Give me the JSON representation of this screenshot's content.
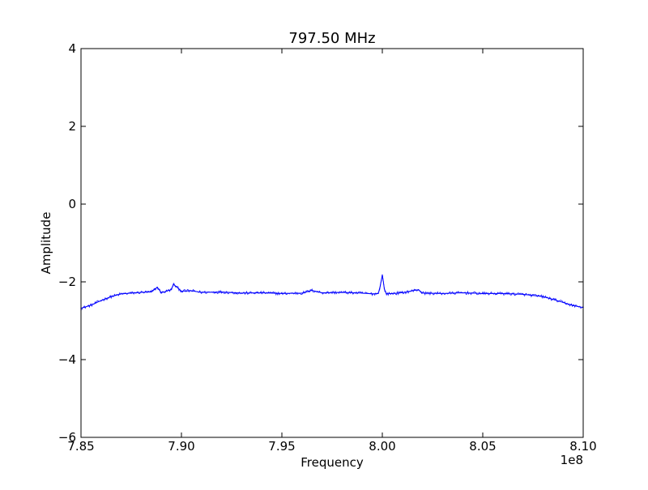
{
  "chart_data": {
    "type": "line",
    "title": "797.50 MHz",
    "xlabel": "Frequency",
    "ylabel": "Amplitude",
    "x_offset_label": "1e8",
    "xlim": [
      7.85,
      8.1
    ],
    "ylim": [
      -6,
      4
    ],
    "x_ticks": [
      7.85,
      7.9,
      7.95,
      8.0,
      8.05,
      8.1
    ],
    "x_tick_labels": [
      "7.85",
      "7.90",
      "7.95",
      "8.00",
      "8.05",
      "8.10"
    ],
    "y_ticks": [
      4,
      2,
      0,
      -2,
      -4,
      -6
    ],
    "y_tick_labels": [
      "4",
      "2",
      "0",
      "−2",
      "−4",
      "−6"
    ],
    "grid": false,
    "series": [
      {
        "color": "#0000ff",
        "x": [
          7.85,
          7.855,
          7.86,
          7.865,
          7.87,
          7.875,
          7.88,
          7.885,
          7.888,
          7.89,
          7.895,
          7.896,
          7.9,
          7.905,
          7.91,
          7.92,
          7.93,
          7.94,
          7.95,
          7.96,
          7.965,
          7.97,
          7.98,
          7.99,
          7.995,
          7.998,
          7.999,
          8.0,
          8.001,
          8.002,
          8.005,
          8.01,
          8.018,
          8.02,
          8.03,
          8.04,
          8.05,
          8.06,
          8.07,
          8.075,
          8.08,
          8.085,
          8.09,
          8.095,
          8.1
        ],
        "y": [
          -2.68,
          -2.6,
          -2.48,
          -2.38,
          -2.31,
          -2.29,
          -2.27,
          -2.26,
          -2.14,
          -2.28,
          -2.2,
          -2.06,
          -2.24,
          -2.23,
          -2.27,
          -2.26,
          -2.29,
          -2.28,
          -2.3,
          -2.29,
          -2.22,
          -2.28,
          -2.27,
          -2.29,
          -2.31,
          -2.3,
          -2.1,
          -1.82,
          -2.18,
          -2.31,
          -2.3,
          -2.28,
          -2.2,
          -2.29,
          -2.3,
          -2.28,
          -2.3,
          -2.3,
          -2.32,
          -2.35,
          -2.38,
          -2.45,
          -2.53,
          -2.61,
          -2.66
        ]
      }
    ]
  }
}
